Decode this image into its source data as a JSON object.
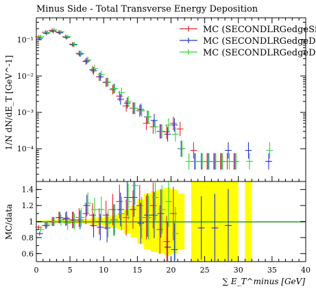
{
  "chart_data": {
    "type": "scatter",
    "title": "Minus Side - Total Transverse Energy Deposition",
    "xlabel": "∑ E_T^minus [GeV]",
    "ylabel_main": "1/N dN/dE_T [GeV^-1]",
    "ylabel_ratio": "MC/data",
    "xlim": [
      0,
      40
    ],
    "ylim_main_log10": [
      -4.9,
      -0.4
    ],
    "ylim_ratio": [
      0.5,
      1.5
    ],
    "x_ticks": [
      0,
      5,
      10,
      15,
      20,
      25,
      30,
      35,
      40
    ],
    "x_tick_labels": [
      "0",
      "5",
      "10",
      "15",
      "20",
      "25",
      "30",
      "35",
      "40"
    ],
    "y_ticks_main": [
      -1,
      -2,
      -3,
      -4
    ],
    "y_tick_labels_main": [
      "10⁻¹",
      "10⁻²",
      "10⁻³",
      "10⁻⁴"
    ],
    "y_ticks_ratio": [
      0.6,
      0.8,
      1.0,
      1.2,
      1.4
    ],
    "y_tick_labels_ratio": [
      "0.6",
      "0.8",
      "1",
      "1.2",
      "1.4"
    ],
    "legend_position": "top-right",
    "bin_width": 1,
    "x": [
      0.5,
      1.5,
      2.5,
      3.5,
      4.5,
      5.5,
      6.5,
      7.5,
      8.5,
      9.5,
      10.5,
      11.5,
      12.5,
      13.5,
      14.5,
      15.5,
      16.5,
      17.5,
      18.5,
      19.5,
      20.5,
      21.5,
      22.5,
      23.5,
      24.5,
      25.5,
      26.5,
      27.5,
      28.5,
      29.5,
      30.5,
      31.5,
      32.5,
      33.5,
      34.5
    ],
    "series": [
      {
        "name": "MC (SECONDLRGedgeSi",
        "color": "#e02020",
        "values": [
          0.12,
          0.16,
          0.18,
          0.16,
          0.12,
          0.075,
          0.042,
          0.025,
          0.015,
          0.0095,
          0.0066,
          0.0042,
          0.0028,
          0.0015,
          0.0013,
          0.0011,
          0.0005,
          0.0004,
          0.0003,
          0.00029,
          0.0005,
          0.00035,
          null,
          9e-05,
          null,
          4.5e-05,
          4.5e-05,
          4.5e-05,
          4.5e-05,
          4.5e-05,
          null,
          null,
          null,
          null,
          null
        ],
        "ratio": [
          0.93,
          0.95,
          1.0,
          1.05,
          1.03,
          1.02,
          1.05,
          1.1,
          1.08,
          1.0,
          1.08,
          1.15,
          1.25,
          1.05,
          1.15,
          1.2,
          1.05,
          1.2,
          0.9,
          0.75,
          1.1,
          null,
          null,
          null,
          null,
          null,
          null,
          null,
          null,
          null,
          null,
          null,
          null,
          null,
          null
        ]
      },
      {
        "name": "MC (SECONDLRGedgeDo",
        "color": "#2030d0",
        "values": [
          0.11,
          0.15,
          0.17,
          0.155,
          0.115,
          0.072,
          0.04,
          0.026,
          0.014,
          0.0095,
          0.0068,
          0.0045,
          0.0023,
          0.0018,
          0.0013,
          0.0012,
          0.00075,
          0.0006,
          0.0003,
          0.00025,
          0.00045,
          0.0001,
          null,
          4.5e-05,
          4.5e-05,
          4.5e-05,
          4.5e-05,
          4.5e-05,
          9e-05,
          4.5e-05,
          null,
          9e-05,
          null,
          null,
          4.5e-05
        ],
        "ratio": [
          0.85,
          0.95,
          1.0,
          1.05,
          1.04,
          1.02,
          1.02,
          1.2,
          0.95,
          0.93,
          0.92,
          1.02,
          1.15,
          1.3,
          1.3,
          0.98,
          1.08,
          1.08,
          1.1,
          0.68,
          0.65,
          null,
          null,
          null,
          0.92,
          null,
          0.92,
          null,
          0.95,
          null,
          null,
          null,
          null,
          null,
          null
        ]
      },
      {
        "name": "MC (SECONDLRGedgeDi",
        "color": "#30d030",
        "values": [
          0.12,
          0.16,
          0.185,
          0.165,
          0.12,
          0.075,
          0.042,
          0.028,
          0.016,
          0.011,
          0.0068,
          0.0045,
          0.0035,
          0.002,
          0.0013,
          0.0011,
          0.00075,
          0.0004,
          0.0003,
          0.00045,
          0.00025,
          0.0001,
          4.5e-05,
          4.5e-05,
          4.5e-05,
          4.5e-05,
          4.5e-05,
          4.5e-05,
          4.5e-05,
          4.5e-05,
          null,
          4.5e-05,
          null,
          null,
          9e-05
        ],
        "ratio": [
          0.9,
          0.97,
          1.0,
          1.02,
          0.98,
          1.0,
          1.05,
          1.23,
          1.15,
          1.15,
          0.98,
          1.02,
          1.1,
          1.25,
          1.45,
          1.05,
          1.05,
          1.3,
          1.15,
          1.25,
          0.85,
          null,
          null,
          null,
          null,
          null,
          null,
          null,
          null,
          null,
          null,
          null,
          null,
          null,
          null
        ]
      }
    ],
    "data_uncertainty_band": {
      "color": "#ffff00",
      "x_start": [
        0,
        1,
        2,
        3,
        4,
        5,
        6,
        7,
        8,
        9,
        10,
        11,
        12,
        13,
        14,
        15,
        16,
        17,
        18,
        19,
        20,
        21,
        22,
        23,
        24,
        25,
        26,
        27,
        28,
        29,
        30,
        31
      ],
      "x_end": [
        1,
        2,
        3,
        4,
        5,
        6,
        7,
        8,
        9,
        10,
        11,
        12,
        13,
        14,
        15,
        16,
        17,
        18,
        19,
        20,
        21,
        22,
        23,
        24,
        25,
        26,
        27,
        28,
        29,
        30,
        31,
        32
      ],
      "low": [
        0.99,
        0.985,
        0.985,
        0.985,
        0.98,
        0.98,
        0.975,
        0.97,
        0.96,
        0.95,
        0.94,
        0.92,
        0.9,
        0.85,
        0.8,
        0.72,
        0.65,
        0.62,
        0.6,
        0.58,
        0.6,
        0.65,
        null,
        0.5,
        0.5,
        0.5,
        0.5,
        0.5,
        0.5,
        0.5,
        null,
        0.5
      ],
      "high": [
        1.01,
        1.015,
        1.015,
        1.015,
        1.02,
        1.02,
        1.025,
        1.03,
        1.04,
        1.05,
        1.06,
        1.08,
        1.1,
        1.15,
        1.2,
        1.28,
        1.35,
        1.38,
        1.4,
        1.42,
        1.4,
        1.35,
        null,
        1.5,
        1.5,
        1.5,
        1.5,
        1.5,
        1.5,
        1.5,
        null,
        1.5
      ]
    }
  }
}
